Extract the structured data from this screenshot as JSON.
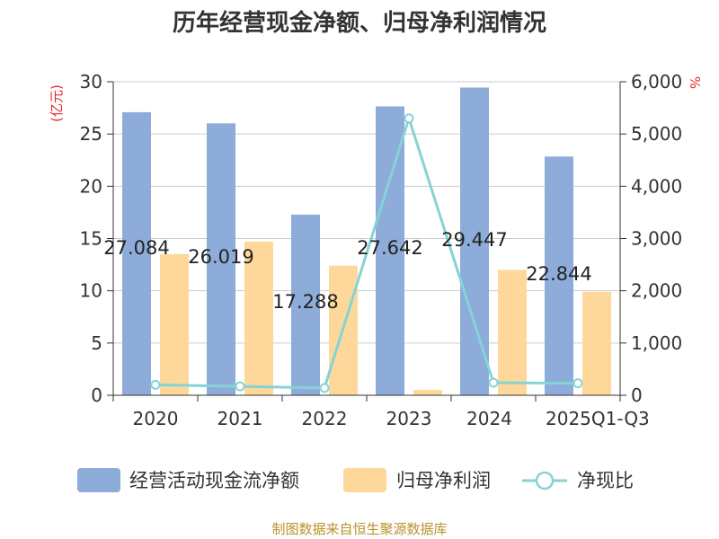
{
  "chart_data": {
    "type": "bar",
    "title": "历年经营现金净额、归母净利润情况",
    "categories": [
      "2020",
      "2021",
      "2022",
      "2023",
      "2024",
      "2025Q1-Q3"
    ],
    "series": [
      {
        "name": "经营活动现金流净额",
        "type": "bar",
        "axis": "left",
        "color": "#8eacd9",
        "values": [
          27.084,
          26.019,
          17.288,
          27.642,
          29.447,
          22.844
        ]
      },
      {
        "name": "归母净利润",
        "type": "bar",
        "axis": "left",
        "color": "#fdd89a",
        "values": [
          13.5,
          14.7,
          12.4,
          0.5,
          12.0,
          9.9
        ]
      },
      {
        "name": "净现比",
        "type": "line",
        "axis": "right",
        "color": "#86d3d6",
        "values": [
          200,
          170,
          140,
          5300,
          240,
          230
        ]
      }
    ],
    "data_labels": [
      "27.084",
      "26.019",
      "17.288",
      "27.642",
      "29.447",
      "22.844"
    ],
    "y_left": {
      "unit": "(亿元)",
      "range": [
        0,
        30
      ],
      "ticks": [
        "0",
        "5",
        "10",
        "15",
        "20",
        "25",
        "30"
      ]
    },
    "y_right": {
      "unit": "%",
      "range": [
        0,
        6000
      ],
      "ticks": [
        "0",
        "1,000",
        "2,000",
        "3,000",
        "4,000",
        "5,000",
        "6,000"
      ]
    },
    "grid": true,
    "legend_position": "bottom"
  },
  "source": "制图数据来自恒生聚源数据库"
}
